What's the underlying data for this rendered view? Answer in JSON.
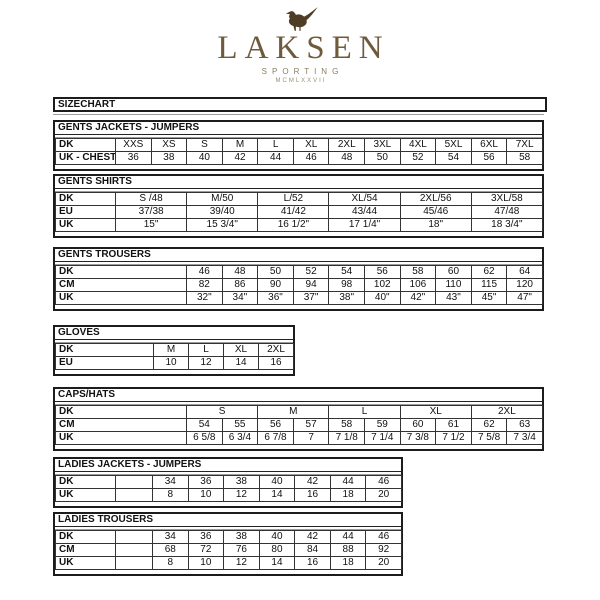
{
  "logo": {
    "brand": "LAKSEN",
    "tagline": "SPORTING",
    "year": "MCMLXXVII",
    "brand_color": "#6f5a3c",
    "bird_color": "#4f3d26"
  },
  "page_title": "SIZECHART",
  "tables": [
    {
      "id": "gents-jackets-jumpers",
      "title": "GENTS JACKETS - JUMPERS",
      "rows": [
        {
          "label": "DK",
          "cells": [
            "XXS",
            "XS",
            "S",
            "M",
            "L",
            "XL",
            "2XL",
            "3XL",
            "4XL",
            "5XL",
            "6XL",
            "7XL"
          ]
        },
        {
          "label": "UK - CHEST",
          "cells": [
            "36",
            "38",
            "40",
            "42",
            "44",
            "46",
            "48",
            "50",
            "52",
            "54",
            "56",
            "58"
          ]
        }
      ]
    },
    {
      "id": "gents-shirts",
      "title": "GENTS SHIRTS",
      "rows": [
        {
          "label": "DK",
          "cells": [
            "S /48",
            "M/50",
            "L/52",
            "XL/54",
            "2XL/56",
            "3XL/58"
          ]
        },
        {
          "label": "EU",
          "cells": [
            "37/38",
            "39/40",
            "41/42",
            "43/44",
            "45/46",
            "47/48"
          ]
        },
        {
          "label": "UK",
          "cells": [
            "15\"",
            "15 3/4\"",
            "16 1/2\"",
            "17 1/4\"",
            "18\"",
            "18 3/4\""
          ]
        }
      ]
    },
    {
      "id": "gents-trousers",
      "title": "GENTS TROUSERS",
      "rows": [
        {
          "label": "DK",
          "cells": [
            "46",
            "48",
            "50",
            "52",
            "54",
            "56",
            "58",
            "60",
            "62",
            "64"
          ]
        },
        {
          "label": "CM",
          "cells": [
            "82",
            "86",
            "90",
            "94",
            "98",
            "102",
            "106",
            "110",
            "115",
            "120"
          ]
        },
        {
          "label": "UK",
          "cells": [
            "32\"",
            "34\"",
            "36\"",
            "37\"",
            "38\"",
            "40\"",
            "42\"",
            "43\"",
            "45\"",
            "47\""
          ]
        }
      ]
    },
    {
      "id": "gloves",
      "title": "GLOVES",
      "rows": [
        {
          "label": "DK",
          "cells": [
            "M",
            "L",
            "XL",
            "2XL"
          ]
        },
        {
          "label": "EU",
          "cells": [
            "10",
            "12",
            "14",
            "16"
          ]
        }
      ]
    },
    {
      "id": "caps-hats",
      "title": "CAPS/HATS",
      "rows": [
        {
          "label": "DK",
          "span": 2,
          "cells": [
            "S",
            "M",
            "L",
            "XL",
            "2XL"
          ]
        },
        {
          "label": "CM",
          "cells": [
            "54",
            "55",
            "56",
            "57",
            "58",
            "59",
            "60",
            "61",
            "62",
            "63"
          ]
        },
        {
          "label": "UK",
          "cells": [
            "6 5/8",
            "6 3/4",
            "6 7/8",
            "7",
            "7 1/8",
            "7 1/4",
            "7 3/8",
            "7 1/2",
            "7 5/8",
            "7 3/4"
          ]
        }
      ]
    },
    {
      "id": "ladies-jackets-jumpers",
      "title": "LADIES JACKETS - JUMPERS",
      "rows": [
        {
          "label": "DK",
          "cells": [
            "",
            "34",
            "36",
            "38",
            "40",
            "42",
            "44",
            "46"
          ]
        },
        {
          "label": "UK",
          "cells": [
            "",
            "8",
            "10",
            "12",
            "14",
            "16",
            "18",
            "20"
          ]
        }
      ]
    },
    {
      "id": "ladies-trousers",
      "title": "LADIES TROUSERS",
      "rows": [
        {
          "label": "DK",
          "cells": [
            "",
            "34",
            "36",
            "38",
            "40",
            "42",
            "44",
            "46"
          ]
        },
        {
          "label": "CM",
          "cells": [
            "",
            "68",
            "72",
            "76",
            "80",
            "84",
            "88",
            "92"
          ]
        },
        {
          "label": "UK",
          "cells": [
            "",
            "8",
            "10",
            "12",
            "14",
            "16",
            "18",
            "20"
          ]
        }
      ]
    }
  ]
}
